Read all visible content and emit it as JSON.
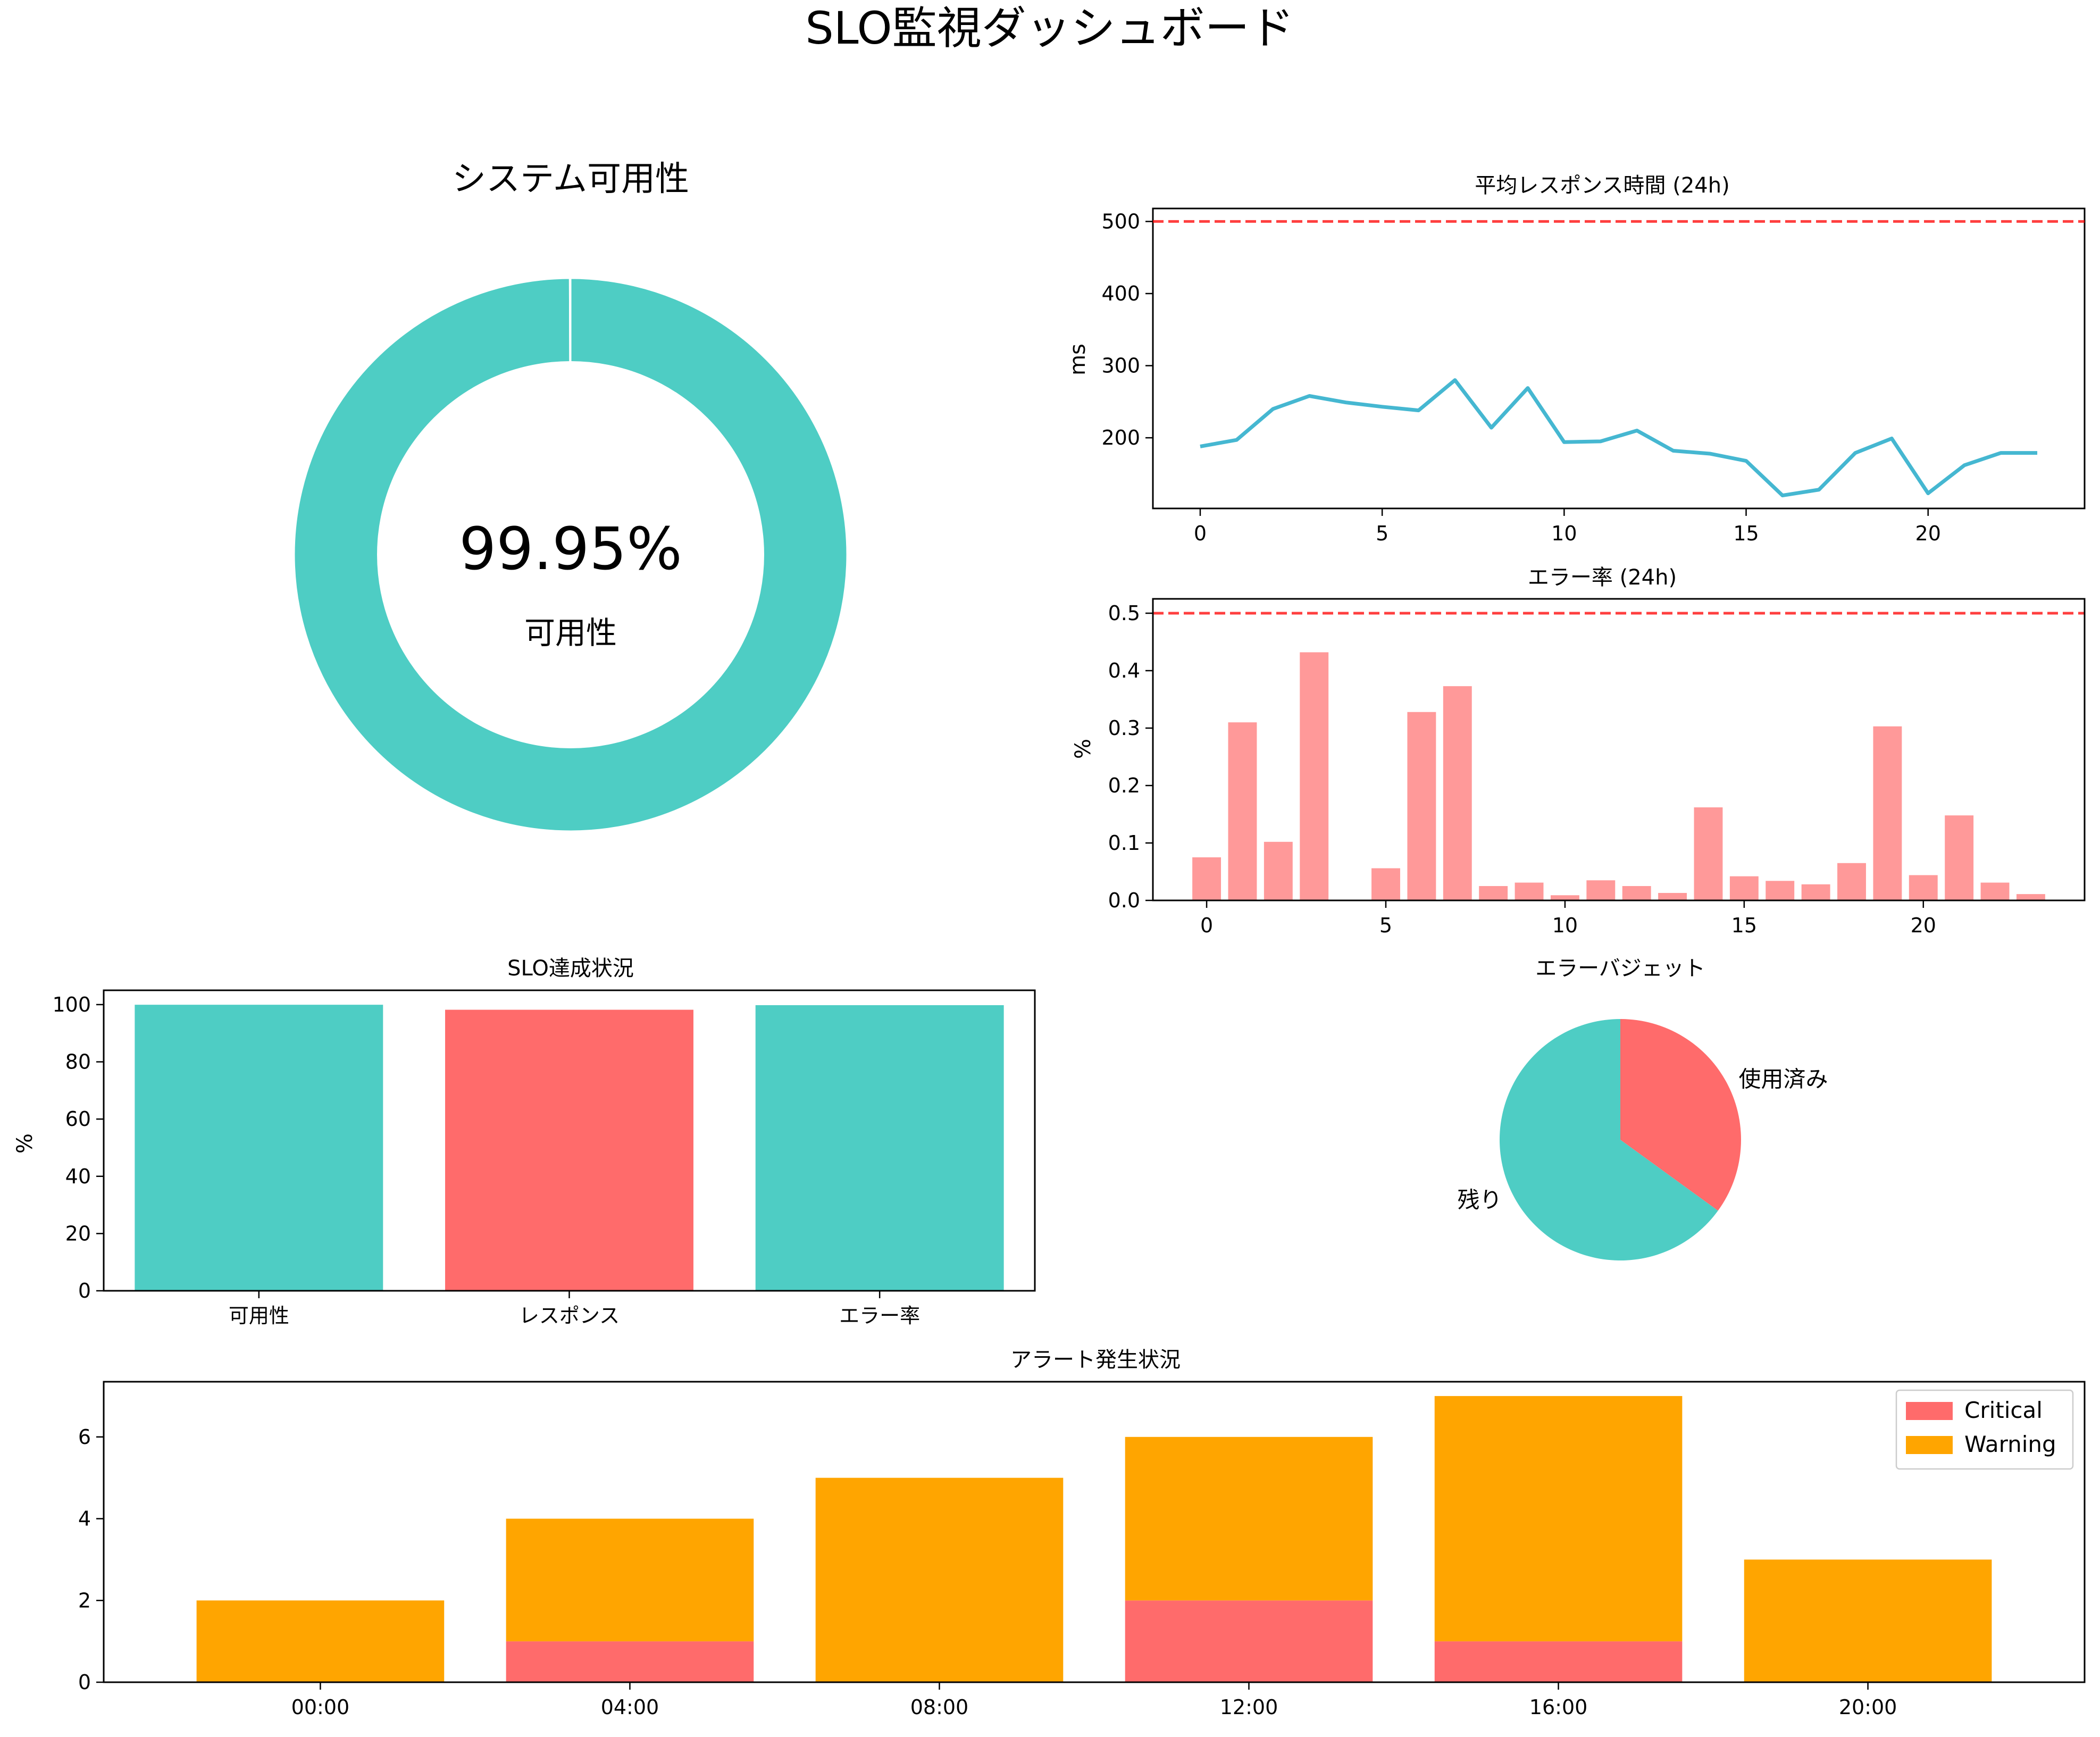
{
  "dashboard": {
    "title": "SLO監視ダッシュボード"
  },
  "chart_data": [
    {
      "type": "pie",
      "id": "availability",
      "title": "システム可用性",
      "center_value": "99.95%",
      "center_label": "可用性",
      "slices": [
        {
          "value": 99.95,
          "color": "#4ECDC4"
        },
        {
          "value": 0.05,
          "color": "#FFFFFF"
        }
      ],
      "donut": true
    },
    {
      "type": "line",
      "id": "response",
      "title": "平均レスポンス時間 (24h)",
      "ylabel": "ms",
      "x": [
        0,
        1,
        2,
        3,
        4,
        5,
        6,
        7,
        8,
        9,
        10,
        11,
        12,
        13,
        14,
        15,
        16,
        17,
        18,
        19,
        20,
        21,
        22,
        23
      ],
      "values": [
        188,
        197,
        240,
        258,
        249,
        243,
        238,
        280,
        214,
        269,
        194,
        195,
        210,
        182,
        178,
        168,
        120,
        128,
        179,
        199,
        123,
        162,
        179,
        179
      ],
      "color": "#45B7D1",
      "threshold": {
        "value": 500,
        "color": "#FF0000",
        "style": "dashed"
      },
      "xlim": [
        -1.3,
        24.3
      ],
      "ylim": [
        102,
        518
      ],
      "xticks": [
        0,
        5,
        10,
        15,
        20
      ],
      "yticks": [
        200,
        300,
        400,
        500
      ]
    },
    {
      "type": "bar",
      "id": "errors",
      "title": "エラー率 (24h)",
      "ylabel": "%",
      "x": [
        0,
        1,
        2,
        3,
        4,
        5,
        6,
        7,
        8,
        9,
        10,
        11,
        12,
        13,
        14,
        15,
        16,
        17,
        18,
        19,
        20,
        21,
        22,
        23
      ],
      "values": [
        0.075,
        0.31,
        0.102,
        0.432,
        0.0,
        0.056,
        0.328,
        0.373,
        0.025,
        0.031,
        0.009,
        0.035,
        0.025,
        0.013,
        0.162,
        0.042,
        0.034,
        0.028,
        0.065,
        0.303,
        0.044,
        0.148,
        0.031,
        0.011
      ],
      "color": "#FF9999",
      "threshold": {
        "value": 0.5,
        "color": "#FF0000",
        "style": "dashed"
      },
      "xlim": [
        -1.5,
        24.5
      ],
      "ylim": [
        0,
        0.525
      ],
      "xticks": [
        0,
        5,
        10,
        15,
        20
      ],
      "yticks": [
        0.0,
        0.1,
        0.2,
        0.3,
        0.4,
        0.5
      ],
      "ytick_labels": [
        "0.0",
        "0.1",
        "0.2",
        "0.3",
        "0.4",
        "0.5"
      ]
    },
    {
      "type": "bar",
      "id": "slo",
      "title": "SLO達成状況",
      "ylabel": "%",
      "categories": [
        "可用性",
        "レスポンス",
        "エラー率"
      ],
      "values": [
        99.95,
        98.2,
        99.8
      ],
      "colors": [
        "#4ECDC4",
        "#FF6B6B",
        "#4ECDC4"
      ],
      "ylim": [
        0,
        105
      ],
      "yticks": [
        0,
        20,
        40,
        60,
        80,
        100
      ]
    },
    {
      "type": "pie",
      "id": "budget",
      "title": "エラーバジェット",
      "slices": [
        {
          "label": "使用済み",
          "value": 35,
          "color": "#FF6B6B"
        },
        {
          "label": "残り",
          "value": 65,
          "color": "#4ECDC4"
        }
      ]
    },
    {
      "type": "bar",
      "id": "alerts",
      "title": "アラート発生状況",
      "categories": [
        "00:00",
        "04:00",
        "08:00",
        "12:00",
        "16:00",
        "20:00"
      ],
      "series": [
        {
          "name": "Critical",
          "values": [
            0,
            1,
            0,
            2,
            1,
            0
          ],
          "color": "#FF6B6B"
        },
        {
          "name": "Warning",
          "values": [
            2,
            3,
            5,
            4,
            6,
            3
          ],
          "color": "#FFA500"
        }
      ],
      "stacked": true,
      "ylim": [
        0,
        7.35
      ],
      "yticks": [
        0,
        2,
        4,
        6
      ],
      "legend": "top-right"
    }
  ]
}
